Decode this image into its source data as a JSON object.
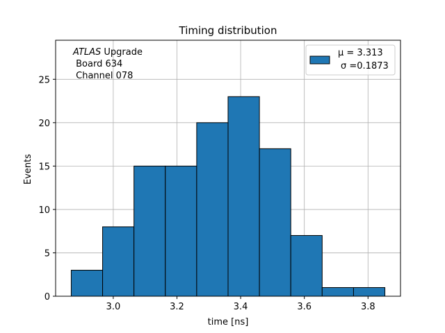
{
  "chart_data": {
    "type": "bar",
    "histogram": true,
    "title": "Timing distribution",
    "xlabel": "time [ns]",
    "ylabel": "Events",
    "bin_edges": [
      2.868,
      2.9665,
      3.065,
      3.1635,
      3.262,
      3.3605,
      3.459,
      3.5575,
      3.656,
      3.7545,
      3.853
    ],
    "values": [
      3,
      8,
      15,
      15,
      20,
      23,
      17,
      7,
      1,
      1
    ],
    "xlim": [
      2.819,
      3.902
    ],
    "ylim": [
      0,
      29.5
    ],
    "xticks": [
      3.0,
      3.2,
      3.4,
      3.6,
      3.8
    ],
    "xtick_labels": [
      "3.0",
      "3.2",
      "3.4",
      "3.6",
      "3.8"
    ],
    "yticks": [
      0,
      5,
      10,
      15,
      20,
      25
    ],
    "ytick_labels": [
      "0",
      "5",
      "10",
      "15",
      "20",
      "25"
    ],
    "grid": true,
    "bar_color": "#1f77b4",
    "edge_color": "#000000",
    "legend": {
      "placement": "upper right",
      "line1": "μ = 3.313",
      "line2": "σ =0.1873"
    },
    "annotation": {
      "line1_italic": "ATLAS",
      "line1_rest": " Upgrade",
      "line2": " Board 634",
      "line3": " Channel 078"
    }
  }
}
